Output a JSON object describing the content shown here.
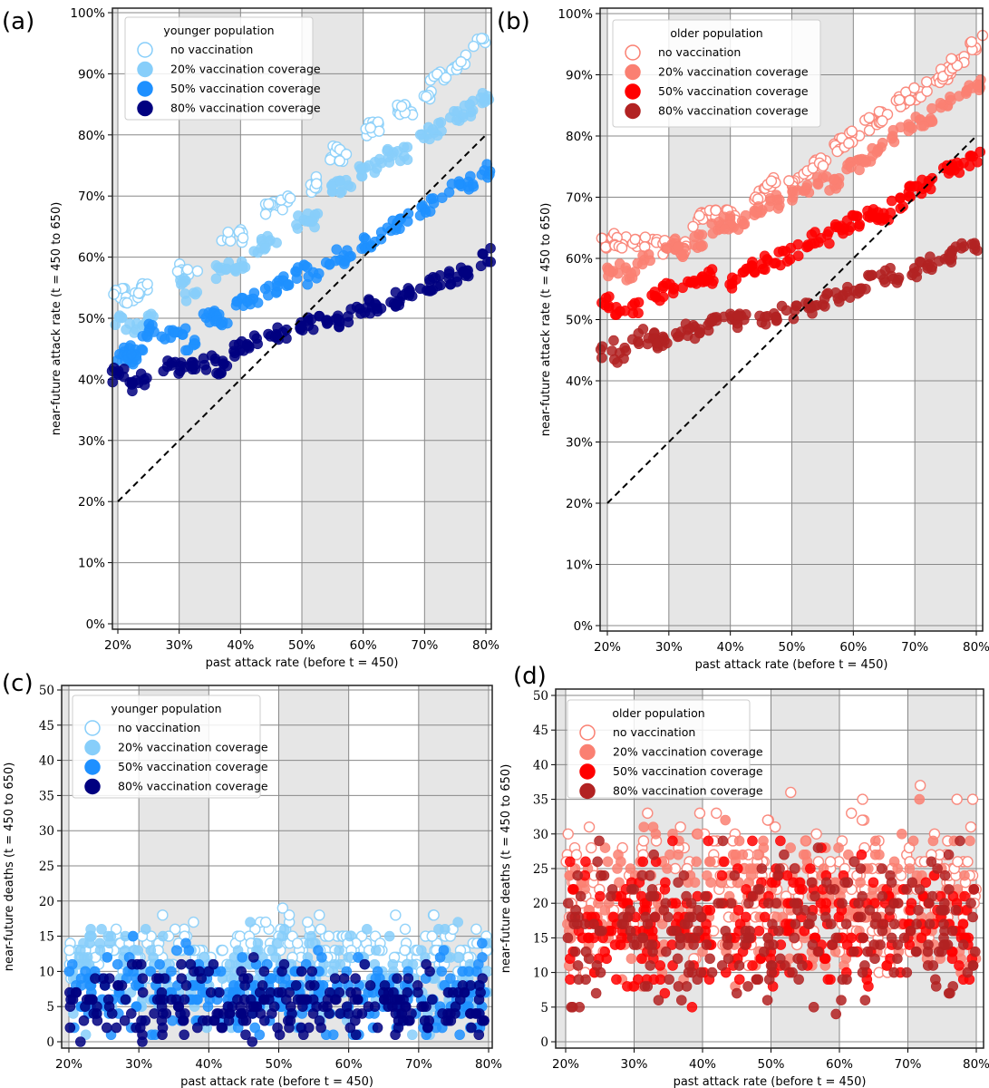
{
  "chart_data": [
    {
      "type": "scatter",
      "panel_label": "(a)",
      "legend_title": "younger population",
      "xlabel": "past attack rate (before t = 450)",
      "ylabel": "near-future attack rate (t = 450 to 650)",
      "xlim": [
        18.5,
        81
      ],
      "ylim": [
        -1,
        100
      ],
      "xticks": [
        "20%",
        "30%",
        "40%",
        "50%",
        "60%",
        "70%",
        "80%"
      ],
      "yticks": [
        "0%",
        "10%",
        "20%",
        "30%",
        "40%",
        "50%",
        "60%",
        "70%",
        "80%",
        "90%",
        "100%"
      ],
      "reference_line": {
        "style": "dashed",
        "from": [
          20,
          20
        ],
        "to": [
          80,
          80
        ]
      },
      "legend_position": "top-left",
      "series": [
        {
          "name": "no vaccination",
          "color": "#87cefa",
          "filled": false,
          "x": [
            20,
            22,
            24,
            30,
            32,
            38,
            40,
            45,
            47,
            52,
            55,
            57,
            61,
            62,
            66,
            67,
            70,
            72,
            74,
            76,
            79
          ],
          "y": [
            54,
            53,
            54.5,
            58,
            57.5,
            63,
            63.5,
            68,
            69,
            72,
            77,
            77,
            81,
            81.5,
            84,
            84,
            86,
            89,
            90,
            92,
            95.5
          ]
        },
        {
          "name": "20% vaccination coverage",
          "color": "#87cefa",
          "filled": true,
          "x": [
            20,
            22,
            25,
            30,
            32,
            37,
            40,
            43,
            45,
            50,
            52,
            55,
            57,
            60,
            62,
            65,
            67,
            70,
            72,
            75,
            77,
            80
          ],
          "y": [
            50,
            48,
            50,
            55,
            54,
            58,
            59,
            62,
            63,
            66,
            66,
            71,
            72,
            74,
            75,
            77,
            77,
            80,
            81,
            83,
            84,
            86
          ]
        },
        {
          "name": "50% vaccination coverage",
          "color": "#1e90ff",
          "filled": true,
          "x": [
            21,
            22,
            23,
            25,
            28,
            30,
            32,
            35,
            37,
            40,
            42,
            45,
            47,
            50,
            52,
            55,
            57,
            60,
            62,
            65,
            67,
            70,
            72,
            75,
            77,
            80
          ],
          "y": [
            44,
            43,
            44,
            48,
            47,
            47,
            46,
            50,
            50,
            53,
            53,
            55,
            56,
            58,
            57,
            60,
            60,
            62,
            63,
            65,
            66,
            68,
            69,
            71,
            72,
            74
          ]
        },
        {
          "name": "80% vaccination coverage",
          "color": "#000080",
          "filled": true,
          "x": [
            20,
            22,
            24,
            28,
            30,
            32,
            35,
            37,
            40,
            42,
            45,
            47,
            50,
            52,
            55,
            57,
            60,
            62,
            65,
            67,
            70,
            72,
            75,
            77,
            80
          ],
          "y": [
            41,
            39,
            40,
            42,
            42,
            42,
            43,
            42,
            45,
            46,
            47,
            47,
            49,
            49,
            50,
            50,
            52,
            52,
            53,
            54,
            55,
            56,
            57,
            58,
            60
          ]
        }
      ]
    },
    {
      "type": "scatter",
      "panel_label": "(b)",
      "legend_title": "older population",
      "xlabel": "past attack rate (before t = 450)",
      "ylabel": "near-future attack rate (t = 450 to 650)",
      "xlim": [
        18.5,
        81
      ],
      "ylim": [
        -1,
        100
      ],
      "xticks": [
        "20%",
        "30%",
        "40%",
        "50%",
        "60%",
        "70%",
        "80%"
      ],
      "yticks": [
        "0%",
        "10%",
        "20%",
        "30%",
        "40%",
        "50%",
        "60%",
        "70%",
        "80%",
        "90%",
        "100%"
      ],
      "reference_line": {
        "style": "dashed",
        "from": [
          20,
          20
        ],
        "to": [
          80,
          80
        ]
      },
      "legend_position": "top-left",
      "series": [
        {
          "name": "no vaccination",
          "color": "#fa8072",
          "filled": false,
          "x": [
            20,
            22,
            25,
            27,
            30,
            32,
            35,
            37,
            40,
            45,
            47,
            50,
            53,
            55,
            58,
            60,
            63,
            65,
            68,
            70,
            73,
            75,
            77,
            80
          ],
          "y": [
            62.5,
            62.5,
            63,
            63,
            62,
            62,
            66.5,
            67,
            67,
            70.5,
            72,
            72,
            75,
            75.5,
            78.5,
            80,
            82,
            83.5,
            86,
            87,
            88.5,
            90,
            92,
            95
          ]
        },
        {
          "name": "20% vaccination coverage",
          "color": "#fa8072",
          "filled": true,
          "x": [
            21,
            24,
            26,
            30,
            32,
            35,
            38,
            40,
            42,
            45,
            47,
            50,
            52,
            55,
            57,
            60,
            62,
            64,
            67,
            70,
            72,
            75,
            78,
            80
          ],
          "y": [
            58,
            58,
            60,
            62,
            61,
            63,
            65,
            66,
            66,
            68,
            69,
            70,
            71,
            73,
            72,
            75,
            76,
            78,
            80,
            82,
            83,
            85,
            87,
            88
          ]
        },
        {
          "name": "50% vaccination coverage",
          "color": "#ff0000",
          "filled": true,
          "x": [
            20,
            22,
            25,
            28,
            30,
            33,
            35,
            37,
            40,
            43,
            45,
            48,
            50,
            53,
            55,
            58,
            60,
            63,
            65,
            67,
            70,
            72,
            75,
            77,
            80
          ],
          "y": [
            53,
            52,
            52,
            54,
            55,
            55,
            57,
            57,
            56,
            58,
            59,
            60,
            61,
            63,
            63,
            65,
            66,
            67,
            67,
            69,
            71,
            72,
            74,
            75,
            76
          ]
        },
        {
          "name": "80% vaccination coverage",
          "color": "#b22222",
          "filled": true,
          "x": [
            20,
            22,
            25,
            27,
            29,
            32,
            34,
            37,
            40,
            42,
            45,
            48,
            50,
            53,
            55,
            58,
            60,
            62,
            65,
            67,
            70,
            72,
            75,
            77,
            80
          ],
          "y": [
            45,
            44,
            47,
            47,
            46,
            48,
            48,
            49,
            50,
            50,
            50,
            51,
            51,
            52,
            53,
            54,
            54,
            56,
            57,
            57,
            58,
            59,
            60,
            61,
            62
          ]
        }
      ]
    },
    {
      "type": "scatter",
      "panel_label": "(c)",
      "legend_title": "younger population",
      "xlabel": "past attack rate (before t = 450)",
      "ylabel": "near-future deaths (t = 450 to 650)",
      "xlim": [
        18.5,
        81
      ],
      "ylim": [
        -1,
        50
      ],
      "xticks": [
        "20%",
        "30%",
        "40%",
        "50%",
        "60%",
        "70%",
        "80%"
      ],
      "yticks": [
        "0",
        "5",
        "10",
        "15",
        "20",
        "25",
        "30",
        "35",
        "40",
        "45",
        "50"
      ],
      "legend_position": "top-left",
      "series": [
        {
          "name": "no vaccination",
          "color": "#87cefa",
          "filled": false,
          "x_range": [
            20,
            80
          ],
          "y_min": 8,
          "y_mean": 12.5,
          "y_max": 20
        },
        {
          "name": "20% vaccination coverage",
          "color": "#87cefa",
          "filled": true,
          "x_range": [
            20,
            80
          ],
          "y_min": 1,
          "y_mean": 9,
          "y_max": 18
        },
        {
          "name": "50% vaccination coverage",
          "color": "#1e90ff",
          "filled": true,
          "x_range": [
            20,
            80
          ],
          "y_min": 1,
          "y_mean": 7,
          "y_max": 15
        },
        {
          "name": "80% vaccination coverage",
          "color": "#000080",
          "filled": true,
          "x_range": [
            20,
            80
          ],
          "y_min": 0,
          "y_mean": 5.5,
          "y_max": 13
        }
      ]
    },
    {
      "type": "scatter",
      "panel_label": "(d)",
      "legend_title": "older population",
      "xlabel": "past attack rate (before t = 450)",
      "ylabel": "near-future deaths (t = 450 to 650)",
      "xlim": [
        18.5,
        81
      ],
      "ylim": [
        -1,
        50
      ],
      "xticks": [
        "20%",
        "30%",
        "40%",
        "50%",
        "60%",
        "70%",
        "80%"
      ],
      "yticks": [
        "0",
        "5",
        "10",
        "15",
        "20",
        "25",
        "30",
        "35",
        "40",
        "45",
        "50"
      ],
      "legend_position": "top-left",
      "series": [
        {
          "name": "no vaccination",
          "color": "#fa8072",
          "filled": false,
          "x_range": [
            20,
            80
          ],
          "y_min": 10,
          "y_mean": 22,
          "y_max": 39
        },
        {
          "name": "20% vaccination coverage",
          "color": "#fa8072",
          "filled": true,
          "x_range": [
            20,
            80
          ],
          "y_min": 8,
          "y_mean": 20,
          "y_max": 35
        },
        {
          "name": "50% vaccination coverage",
          "color": "#ff0000",
          "filled": true,
          "x_range": [
            20,
            80
          ],
          "y_min": 5,
          "y_mean": 17,
          "y_max": 30
        },
        {
          "name": "80% vaccination coverage",
          "color": "#b22222",
          "filled": true,
          "x_range": [
            20,
            80
          ],
          "y_min": 4,
          "y_mean": 16,
          "y_max": 29
        }
      ]
    }
  ]
}
